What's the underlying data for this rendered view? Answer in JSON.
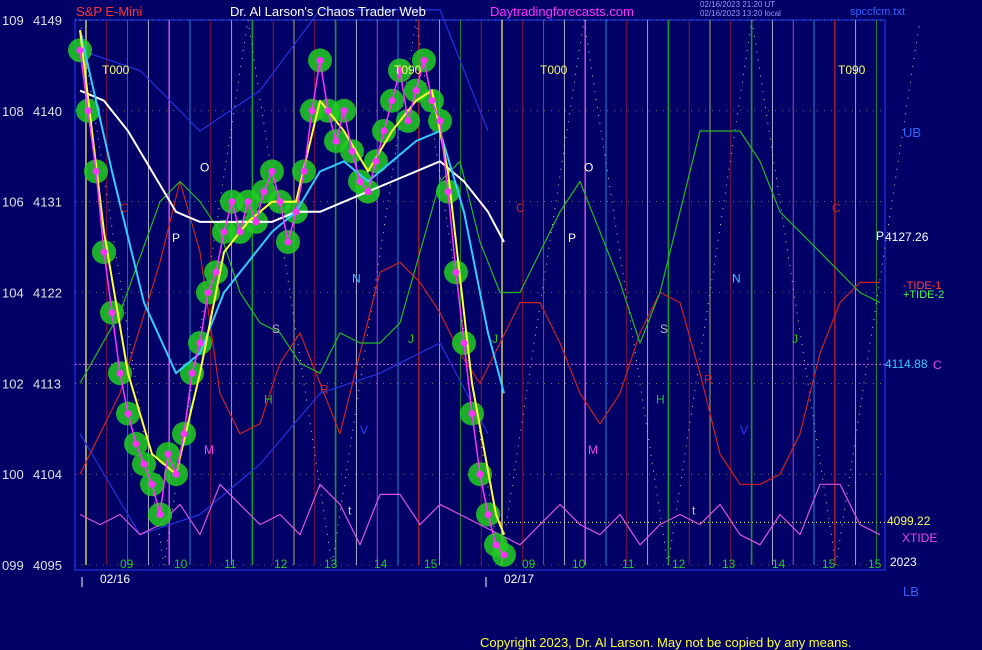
{
  "header": {
    "instrument": "S&P E-Mini",
    "site": "Dr. Al Larson's Chaos Trader Web",
    "url": "Daytradingforecasts.com",
    "stamp_line1": "02/16/2023 21:20 UT",
    "stamp_line2": "02/16/2023 13:20 local",
    "file": "spccfcm.txt"
  },
  "right_labels": {
    "ub": "UB",
    "lb": "LB",
    "price_a": "4127.26",
    "price_a_letter": "P",
    "tide1": "-TIDE-1",
    "tide2": "+TIDE-2",
    "price_c": "4114.88",
    "price_c_letter": "C",
    "price_low": "4099.22",
    "xtide": "XTIDE",
    "year": "2023"
  },
  "copyright": "Copyright 2023, Dr. Al Larson. May not be copied by any means.",
  "colors": {
    "background": "#000066",
    "price_trace": "#ff33ff",
    "price_glow": "#22cc22",
    "fast_avg": "#ffff33",
    "mid_avg": "#33ccff",
    "slow_avg": "#ffffff",
    "tide_red": "#cc2222",
    "tide_green": "#22bb22",
    "xtide": "#dd55dd",
    "band": "#2233dd"
  },
  "chart_data": {
    "type": "line",
    "title": "S&P E-Mini",
    "y_left_a": [
      "109",
      "108",
      "106",
      "104",
      "102",
      "100",
      "099"
    ],
    "y_left_b": [
      "4149",
      "4140",
      "4131",
      "4122",
      "4113",
      "4104",
      "4095"
    ],
    "ylim": [
      4095,
      4149
    ],
    "x_dates": [
      "02/16",
      "02/17"
    ],
    "x_hours_day1": [
      "09",
      "10",
      "11",
      "12",
      "13",
      "14",
      "15"
    ],
    "x_hours_day2": [
      "09",
      "10",
      "11",
      "12",
      "13",
      "14",
      "15"
    ],
    "x_hours_extra": [
      "15"
    ],
    "phase_markers": [
      "T000",
      "T090",
      "T000",
      "T090"
    ],
    "planet_letters": [
      {
        "label": "C",
        "color": "#cc2222"
      },
      {
        "label": "O",
        "color": "#ffffff"
      },
      {
        "label": "P",
        "color": "#ffffff"
      },
      {
        "label": "S",
        "color": "#bbbbbb"
      },
      {
        "label": "H",
        "color": "#22cc22"
      },
      {
        "label": "M",
        "color": "#ee44ee"
      },
      {
        "label": "R",
        "color": "#cc2222"
      },
      {
        "label": "N",
        "color": "#33ccff"
      },
      {
        "label": "J",
        "color": "#22cc22"
      },
      {
        "label": "V",
        "color": "#2244ff"
      },
      {
        "label": "t",
        "color": "#cccccc"
      },
      {
        "label": "J",
        "color": "#22cc22"
      },
      {
        "label": "C",
        "color": "#cc2222"
      },
      {
        "label": "P",
        "color": "#ffffff"
      },
      {
        "label": "O",
        "color": "#ffffff"
      },
      {
        "label": "S",
        "color": "#bbbbbb"
      },
      {
        "label": "H",
        "color": "#22cc22"
      },
      {
        "label": "M",
        "color": "#ee44ee"
      },
      {
        "label": "R",
        "color": "#cc2222"
      },
      {
        "label": "N",
        "color": "#33ccff"
      },
      {
        "label": "J",
        "color": "#22cc22"
      },
      {
        "label": "V",
        "color": "#2244ff"
      },
      {
        "label": "t",
        "color": "#cccccc"
      },
      {
        "label": "C",
        "color": "#cc2222"
      }
    ],
    "price_series": [
      {
        "t": 0.0,
        "v": 4146
      },
      {
        "t": 0.2,
        "v": 4140
      },
      {
        "t": 0.4,
        "v": 4134
      },
      {
        "t": 0.6,
        "v": 4126
      },
      {
        "t": 0.8,
        "v": 4120
      },
      {
        "t": 1.0,
        "v": 4114
      },
      {
        "t": 1.2,
        "v": 4110
      },
      {
        "t": 1.4,
        "v": 4107
      },
      {
        "t": 1.6,
        "v": 4105
      },
      {
        "t": 1.8,
        "v": 4103
      },
      {
        "t": 2.0,
        "v": 4100
      },
      {
        "t": 2.2,
        "v": 4106
      },
      {
        "t": 2.4,
        "v": 4104
      },
      {
        "t": 2.6,
        "v": 4108
      },
      {
        "t": 2.8,
        "v": 4114
      },
      {
        "t": 3.0,
        "v": 4117
      },
      {
        "t": 3.2,
        "v": 4122
      },
      {
        "t": 3.4,
        "v": 4124
      },
      {
        "t": 3.6,
        "v": 4128
      },
      {
        "t": 3.8,
        "v": 4131
      },
      {
        "t": 4.0,
        "v": 4128
      },
      {
        "t": 4.2,
        "v": 4131
      },
      {
        "t": 4.4,
        "v": 4129
      },
      {
        "t": 4.6,
        "v": 4132
      },
      {
        "t": 4.8,
        "v": 4134
      },
      {
        "t": 5.0,
        "v": 4131
      },
      {
        "t": 5.2,
        "v": 4127
      },
      {
        "t": 5.4,
        "v": 4130
      },
      {
        "t": 5.6,
        "v": 4134
      },
      {
        "t": 5.8,
        "v": 4140
      },
      {
        "t": 6.0,
        "v": 4145
      },
      {
        "t": 6.2,
        "v": 4140
      },
      {
        "t": 6.4,
        "v": 4137
      },
      {
        "t": 6.6,
        "v": 4140
      },
      {
        "t": 6.8,
        "v": 4136
      },
      {
        "t": 7.0,
        "v": 4133
      },
      {
        "t": 7.2,
        "v": 4132
      },
      {
        "t": 7.4,
        "v": 4135
      },
      {
        "t": 7.6,
        "v": 4138
      },
      {
        "t": 7.8,
        "v": 4141
      },
      {
        "t": 8.0,
        "v": 4144
      },
      {
        "t": 8.2,
        "v": 4139
      },
      {
        "t": 8.4,
        "v": 4142
      },
      {
        "t": 8.6,
        "v": 4145
      },
      {
        "t": 8.8,
        "v": 4141
      },
      {
        "t": 9.0,
        "v": 4139
      },
      {
        "t": 9.2,
        "v": 4132
      },
      {
        "t": 9.4,
        "v": 4124
      },
      {
        "t": 9.6,
        "v": 4117
      },
      {
        "t": 9.8,
        "v": 4110
      },
      {
        "t": 10.0,
        "v": 4104
      },
      {
        "t": 10.2,
        "v": 4100
      },
      {
        "t": 10.4,
        "v": 4097
      },
      {
        "t": 10.6,
        "v": 4096
      }
    ],
    "fast_average": [
      {
        "t": 0.0,
        "v": 4148
      },
      {
        "t": 0.6,
        "v": 4128
      },
      {
        "t": 1.2,
        "v": 4114
      },
      {
        "t": 1.8,
        "v": 4106
      },
      {
        "t": 2.4,
        "v": 4104
      },
      {
        "t": 3.0,
        "v": 4114
      },
      {
        "t": 3.6,
        "v": 4126
      },
      {
        "t": 4.2,
        "v": 4129
      },
      {
        "t": 4.8,
        "v": 4131
      },
      {
        "t": 5.4,
        "v": 4131
      },
      {
        "t": 6.0,
        "v": 4141
      },
      {
        "t": 6.6,
        "v": 4138
      },
      {
        "t": 7.2,
        "v": 4134
      },
      {
        "t": 7.8,
        "v": 4138
      },
      {
        "t": 8.4,
        "v": 4141
      },
      {
        "t": 8.8,
        "v": 4142
      },
      {
        "t": 9.2,
        "v": 4134
      },
      {
        "t": 9.8,
        "v": 4113
      },
      {
        "t": 10.4,
        "v": 4100
      },
      {
        "t": 10.6,
        "v": 4098
      }
    ],
    "mid_average": [
      {
        "t": 0.0,
        "v": 4148
      },
      {
        "t": 0.8,
        "v": 4134
      },
      {
        "t": 1.6,
        "v": 4121
      },
      {
        "t": 2.4,
        "v": 4114
      },
      {
        "t": 3.0,
        "v": 4116
      },
      {
        "t": 3.6,
        "v": 4122
      },
      {
        "t": 4.2,
        "v": 4125
      },
      {
        "t": 4.8,
        "v": 4128
      },
      {
        "t": 5.4,
        "v": 4130
      },
      {
        "t": 6.0,
        "v": 4134
      },
      {
        "t": 6.6,
        "v": 4135
      },
      {
        "t": 7.2,
        "v": 4133
      },
      {
        "t": 7.8,
        "v": 4135
      },
      {
        "t": 8.4,
        "v": 4137
      },
      {
        "t": 9.0,
        "v": 4138
      },
      {
        "t": 9.6,
        "v": 4130
      },
      {
        "t": 10.2,
        "v": 4118
      },
      {
        "t": 10.6,
        "v": 4112
      }
    ],
    "slow_average": [
      {
        "t": 0.0,
        "v": 4142
      },
      {
        "t": 0.6,
        "v": 4141
      },
      {
        "t": 1.2,
        "v": 4138
      },
      {
        "t": 1.8,
        "v": 4134
      },
      {
        "t": 2.4,
        "v": 4130
      },
      {
        "t": 3.0,
        "v": 4129
      },
      {
        "t": 3.6,
        "v": 4129
      },
      {
        "t": 4.2,
        "v": 4129
      },
      {
        "t": 4.8,
        "v": 4129
      },
      {
        "t": 5.4,
        "v": 4130
      },
      {
        "t": 6.0,
        "v": 4130
      },
      {
        "t": 6.6,
        "v": 4131
      },
      {
        "t": 7.2,
        "v": 4132
      },
      {
        "t": 7.8,
        "v": 4133
      },
      {
        "t": 8.4,
        "v": 4134
      },
      {
        "t": 9.0,
        "v": 4135
      },
      {
        "t": 9.6,
        "v": 4133
      },
      {
        "t": 10.2,
        "v": 4130
      },
      {
        "t": 10.6,
        "v": 4127
      }
    ],
    "tide_red": [
      {
        "t": 0.0,
        "v": 4104
      },
      {
        "t": 1.0,
        "v": 4112
      },
      {
        "t": 2.0,
        "v": 4125
      },
      {
        "t": 2.5,
        "v": 4133
      },
      {
        "t": 3.0,
        "v": 4126
      },
      {
        "t": 3.5,
        "v": 4112
      },
      {
        "t": 4.0,
        "v": 4108
      },
      {
        "t": 4.5,
        "v": 4109
      },
      {
        "t": 5.0,
        "v": 4115
      },
      {
        "t": 5.5,
        "v": 4118
      },
      {
        "t": 6.0,
        "v": 4113
      },
      {
        "t": 6.5,
        "v": 4108
      },
      {
        "t": 7.0,
        "v": 4116
      },
      {
        "t": 7.5,
        "v": 4124
      },
      {
        "t": 8.0,
        "v": 4125
      },
      {
        "t": 8.5,
        "v": 4123
      },
      {
        "t": 9.0,
        "v": 4120
      },
      {
        "t": 9.5,
        "v": 4116
      },
      {
        "t": 10.0,
        "v": 4113
      },
      {
        "t": 10.5,
        "v": 4117
      },
      {
        "t": 11.0,
        "v": 4121
      },
      {
        "t": 11.5,
        "v": 4121
      },
      {
        "t": 12.0,
        "v": 4117
      },
      {
        "t": 12.5,
        "v": 4112
      },
      {
        "t": 13.0,
        "v": 4109
      },
      {
        "t": 13.5,
        "v": 4112
      },
      {
        "t": 14.0,
        "v": 4118
      },
      {
        "t": 14.5,
        "v": 4122
      },
      {
        "t": 15.0,
        "v": 4121
      },
      {
        "t": 15.5,
        "v": 4114
      },
      {
        "t": 16.0,
        "v": 4106
      },
      {
        "t": 16.5,
        "v": 4103
      },
      {
        "t": 17.0,
        "v": 4103
      },
      {
        "t": 17.5,
        "v": 4104
      },
      {
        "t": 18.0,
        "v": 4108
      },
      {
        "t": 18.5,
        "v": 4116
      },
      {
        "t": 19.0,
        "v": 4121
      },
      {
        "t": 19.5,
        "v": 4123
      },
      {
        "t": 20.0,
        "v": 4123
      }
    ],
    "tide_green": [
      {
        "t": 0.0,
        "v": 4113
      },
      {
        "t": 1.0,
        "v": 4120
      },
      {
        "t": 2.0,
        "v": 4131
      },
      {
        "t": 2.5,
        "v": 4133
      },
      {
        "t": 3.0,
        "v": 4131
      },
      {
        "t": 3.5,
        "v": 4128
      },
      {
        "t": 4.0,
        "v": 4122
      },
      {
        "t": 4.5,
        "v": 4119
      },
      {
        "t": 5.0,
        "v": 4118
      },
      {
        "t": 5.5,
        "v": 4115
      },
      {
        "t": 6.0,
        "v": 4114
      },
      {
        "t": 6.5,
        "v": 4118
      },
      {
        "t": 7.0,
        "v": 4117
      },
      {
        "t": 7.5,
        "v": 4117
      },
      {
        "t": 8.0,
        "v": 4119
      },
      {
        "t": 8.5,
        "v": 4126
      },
      {
        "t": 9.0,
        "v": 4133
      },
      {
        "t": 9.5,
        "v": 4135
      },
      {
        "t": 10.0,
        "v": 4127
      },
      {
        "t": 10.5,
        "v": 4122
      },
      {
        "t": 11.0,
        "v": 4122
      },
      {
        "t": 11.5,
        "v": 4126
      },
      {
        "t": 12.0,
        "v": 4130
      },
      {
        "t": 12.5,
        "v": 4133
      },
      {
        "t": 13.0,
        "v": 4128
      },
      {
        "t": 13.5,
        "v": 4123
      },
      {
        "t": 14.0,
        "v": 4117
      },
      {
        "t": 14.5,
        "v": 4122
      },
      {
        "t": 15.0,
        "v": 4130
      },
      {
        "t": 15.5,
        "v": 4138
      },
      {
        "t": 16.0,
        "v": 4138
      },
      {
        "t": 16.5,
        "v": 4138
      },
      {
        "t": 17.0,
        "v": 4135
      },
      {
        "t": 17.5,
        "v": 4130
      },
      {
        "t": 18.0,
        "v": 4128
      },
      {
        "t": 18.5,
        "v": 4126
      },
      {
        "t": 19.0,
        "v": 4124
      },
      {
        "t": 19.5,
        "v": 4122
      },
      {
        "t": 20.0,
        "v": 4121
      }
    ],
    "xtide": [
      {
        "t": 0.0,
        "v": 4100
      },
      {
        "t": 0.5,
        "v": 4099
      },
      {
        "t": 1.0,
        "v": 4100
      },
      {
        "t": 1.5,
        "v": 4098
      },
      {
        "t": 2.0,
        "v": 4099
      },
      {
        "t": 2.5,
        "v": 4101
      },
      {
        "t": 3.0,
        "v": 4098
      },
      {
        "t": 3.5,
        "v": 4103
      },
      {
        "t": 4.0,
        "v": 4101
      },
      {
        "t": 4.5,
        "v": 4099
      },
      {
        "t": 5.0,
        "v": 4100
      },
      {
        "t": 5.5,
        "v": 4098
      },
      {
        "t": 6.0,
        "v": 4103
      },
      {
        "t": 6.5,
        "v": 4101
      },
      {
        "t": 7.0,
        "v": 4097
      },
      {
        "t": 7.5,
        "v": 4102
      },
      {
        "t": 8.0,
        "v": 4102
      },
      {
        "t": 8.5,
        "v": 4099
      },
      {
        "t": 9.0,
        "v": 4101
      },
      {
        "t": 9.5,
        "v": 4100
      },
      {
        "t": 10.0,
        "v": 4099
      },
      {
        "t": 10.5,
        "v": 4098
      },
      {
        "t": 11.0,
        "v": 4097
      },
      {
        "t": 11.5,
        "v": 4099
      },
      {
        "t": 12.0,
        "v": 4101
      },
      {
        "t": 12.5,
        "v": 4099
      },
      {
        "t": 13.0,
        "v": 4098
      },
      {
        "t": 13.5,
        "v": 4100
      },
      {
        "t": 14.0,
        "v": 4097
      },
      {
        "t": 14.5,
        "v": 4099
      },
      {
        "t": 15.0,
        "v": 4100
      },
      {
        "t": 15.5,
        "v": 4099
      },
      {
        "t": 16.0,
        "v": 4101
      },
      {
        "t": 16.5,
        "v": 4098
      },
      {
        "t": 17.0,
        "v": 4097
      },
      {
        "t": 17.5,
        "v": 4100
      },
      {
        "t": 18.0,
        "v": 4098
      },
      {
        "t": 18.5,
        "v": 4103
      },
      {
        "t": 19.0,
        "v": 4103
      },
      {
        "t": 19.5,
        "v": 4099
      },
      {
        "t": 20.0,
        "v": 4098
      }
    ],
    "band_upper": [
      {
        "t": 0.0,
        "v": 4146
      },
      {
        "t": 1.5,
        "v": 4144
      },
      {
        "t": 3.0,
        "v": 4138
      },
      {
        "t": 4.5,
        "v": 4142
      },
      {
        "t": 6.0,
        "v": 4150
      },
      {
        "t": 7.5,
        "v": 4150
      },
      {
        "t": 9.0,
        "v": 4150
      },
      {
        "t": 10.2,
        "v": 4138
      }
    ],
    "band_lower": [
      {
        "t": 0.0,
        "v": 4108
      },
      {
        "t": 1.5,
        "v": 4098
      },
      {
        "t": 3.0,
        "v": 4100
      },
      {
        "t": 4.5,
        "v": 4105
      },
      {
        "t": 6.0,
        "v": 4112
      },
      {
        "t": 7.5,
        "v": 4114
      },
      {
        "t": 9.0,
        "v": 4117
      },
      {
        "t": 10.2,
        "v": 4108
      }
    ],
    "dotted_levels": [
      4114.88,
      4099.22
    ]
  }
}
